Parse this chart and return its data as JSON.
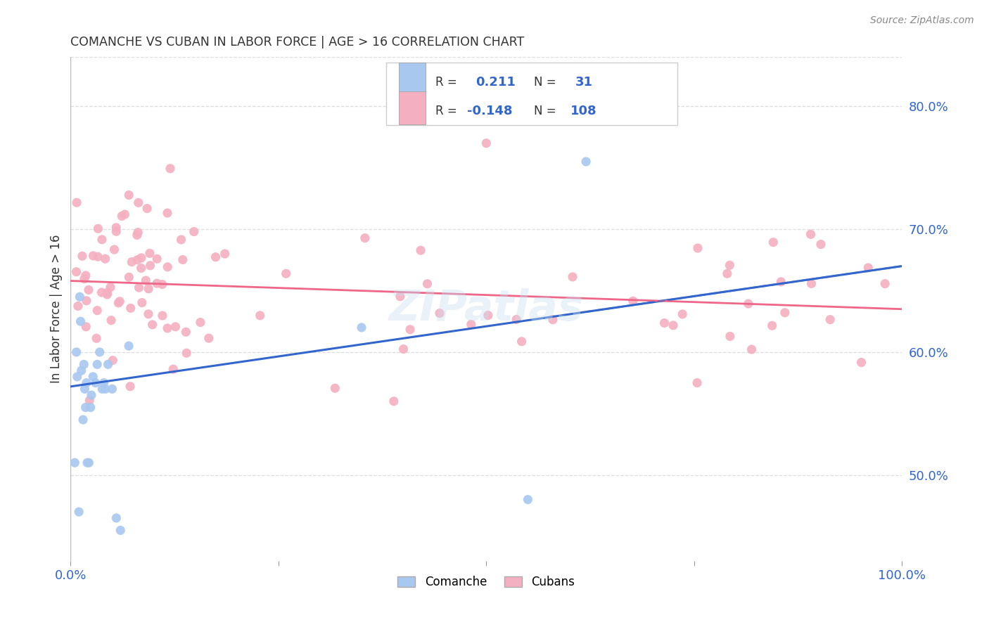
{
  "title": "COMANCHE VS CUBAN IN LABOR FORCE | AGE > 16 CORRELATION CHART",
  "source": "Source: ZipAtlas.com",
  "ylabel": "In Labor Force | Age > 16",
  "right_ytick_vals": [
    0.5,
    0.6,
    0.7,
    0.8
  ],
  "xlim": [
    0.0,
    1.0
  ],
  "ylim": [
    0.43,
    0.84
  ],
  "comanche_color": "#a8c8f0",
  "cuban_color": "#f4b0c0",
  "comanche_line_color": "#3366cc",
  "cuban_line_color": "#ee6688",
  "legend_R_comanche": "0.211",
  "legend_N_comanche": "31",
  "legend_R_cuban": "-0.148",
  "legend_N_cuban": "108",
  "watermark": "ZIPatlas",
  "comanche_trendline_x": [
    0.0,
    1.0
  ],
  "comanche_trendline_y": [
    0.572,
    0.67
  ],
  "cuban_trendline_x": [
    0.0,
    1.0
  ],
  "cuban_trendline_y": [
    0.658,
    0.635
  ],
  "grid_color": "#dddddd",
  "ytick_color": "#3366cc",
  "xtick_color": "#3366cc"
}
